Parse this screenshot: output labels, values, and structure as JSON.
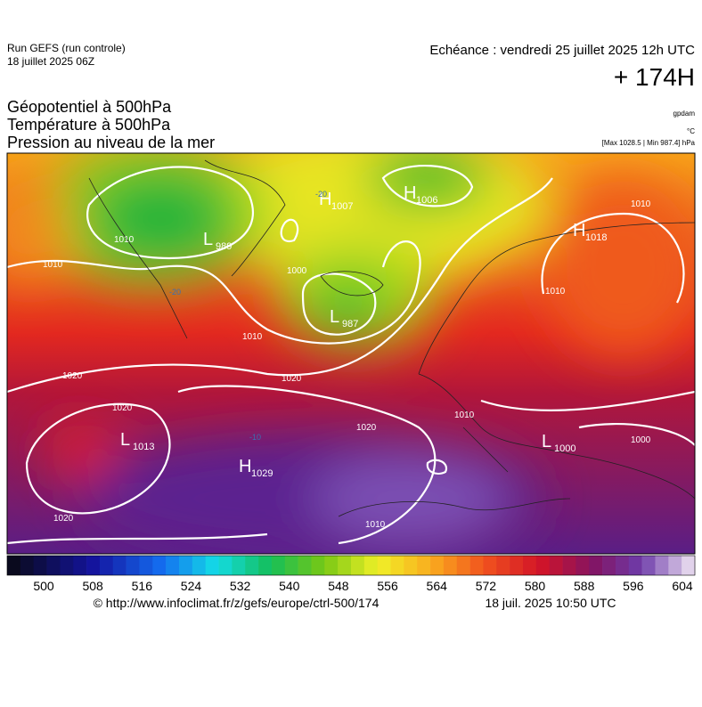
{
  "header": {
    "run": "Run GEFS (run controle)",
    "date": "18 juillet 2025 06Z",
    "echeance": "Echéance : vendredi 25 juillet 2025 12h UTC",
    "lead": "+ 174H",
    "fields": [
      "Géopotentiel à 500hPa",
      "Température à 500hPa",
      "Pression au niveau de la mer"
    ],
    "units": [
      "gpdam",
      "°C",
      "[Max 1028.5 | Min 987.4] hPa"
    ]
  },
  "map": {
    "centers": [
      {
        "letter": "H",
        "value": "1007"
      },
      {
        "letter": "H",
        "value": "1006"
      },
      {
        "letter": "L",
        "value": "989"
      },
      {
        "letter": "L",
        "value": "987"
      },
      {
        "letter": "H",
        "value": "1018"
      },
      {
        "letter": "L",
        "value": "1013"
      },
      {
        "letter": "H",
        "value": "1029"
      },
      {
        "letter": "L",
        "value": "1000"
      }
    ],
    "isobar_labels": [
      "1010",
      "1010",
      "1010",
      "1000",
      "1020",
      "1020",
      "1020",
      "1020",
      "1020",
      "1010",
      "1010",
      "1010",
      "1000",
      "1010"
    ],
    "temperature_labels": [
      "-20",
      "-20",
      "-10"
    ]
  },
  "colorbar": {
    "ticks": [
      500,
      508,
      516,
      524,
      532,
      540,
      548,
      556,
      564,
      572,
      580,
      588,
      596,
      604
    ]
  },
  "footer": {
    "source": "© http://www.infoclimat.fr/z/gefs/europe/ctrl-500/174",
    "issued": "18 juil. 2025 10:50 UTC"
  }
}
